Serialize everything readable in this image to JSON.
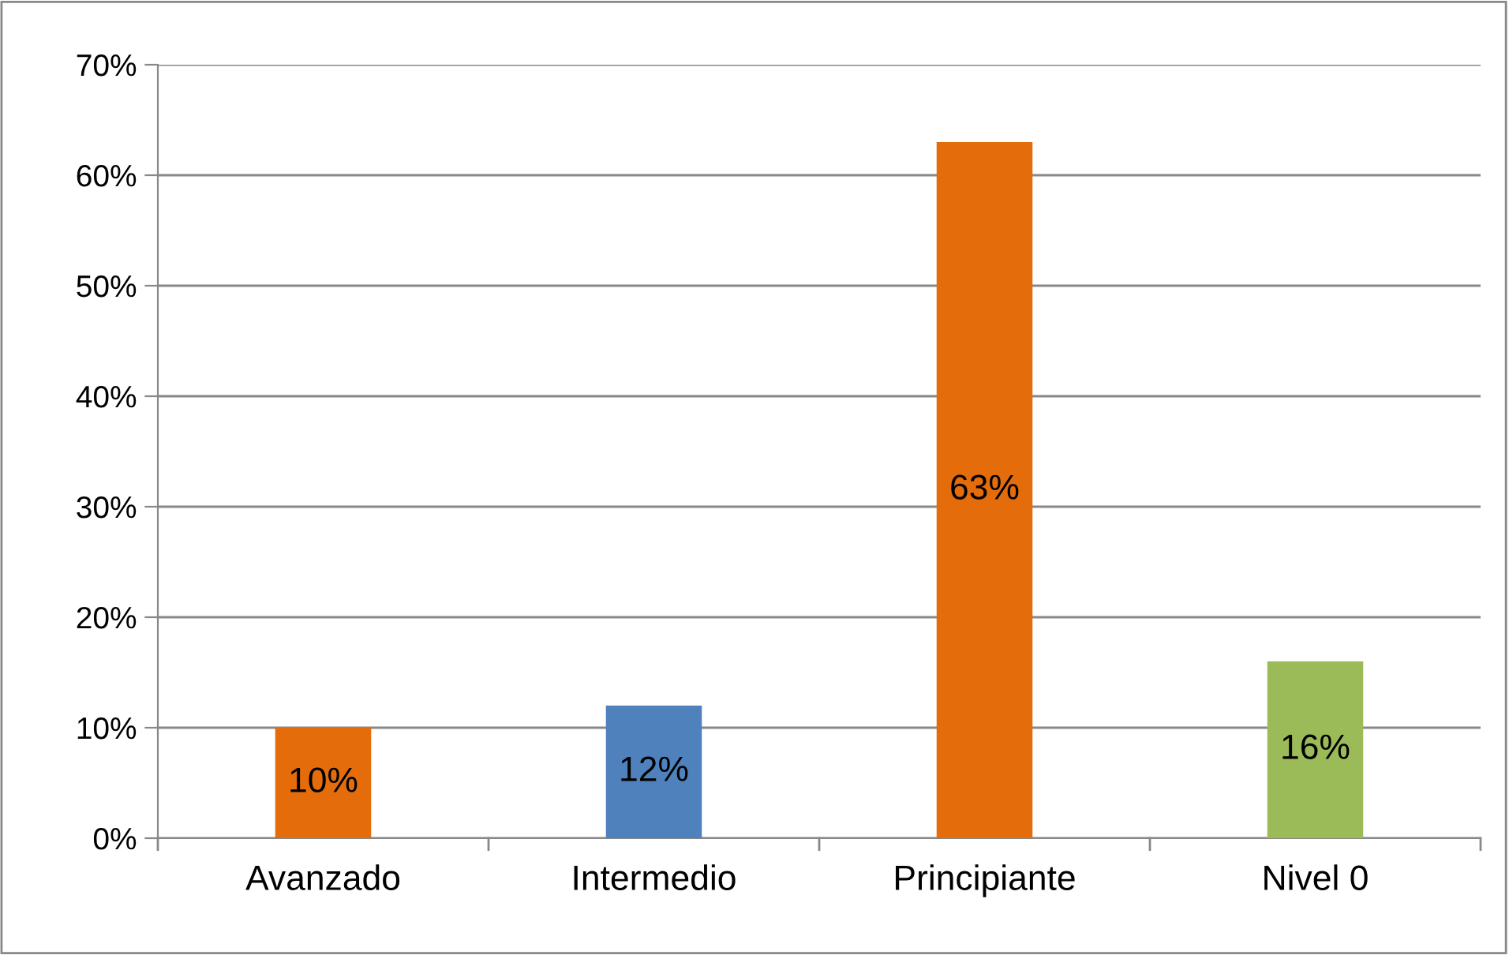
{
  "chart_data": {
    "type": "bar",
    "categories": [
      "Avanzado",
      "Intermedio",
      "Principiante",
      "Nivel 0"
    ],
    "values": [
      10,
      12,
      63,
      16
    ],
    "colors": [
      "#e46c0a",
      "#4f81bd",
      "#e46c0a",
      "#9bbb59"
    ],
    "ylim": [
      0,
      70
    ],
    "yticks": [
      {
        "value": 0,
        "label": "0%"
      },
      {
        "value": 10,
        "label": "10%"
      },
      {
        "value": 20,
        "label": "20%"
      },
      {
        "value": 30,
        "label": "30%"
      },
      {
        "value": 40,
        "label": "40%"
      },
      {
        "value": 50,
        "label": "50%"
      },
      {
        "value": 60,
        "label": "60%"
      },
      {
        "value": 70,
        "label": "70%"
      }
    ],
    "value_labels": [
      "10%",
      "12%",
      "63%",
      "16%"
    ],
    "grid": "y",
    "legend": false
  }
}
